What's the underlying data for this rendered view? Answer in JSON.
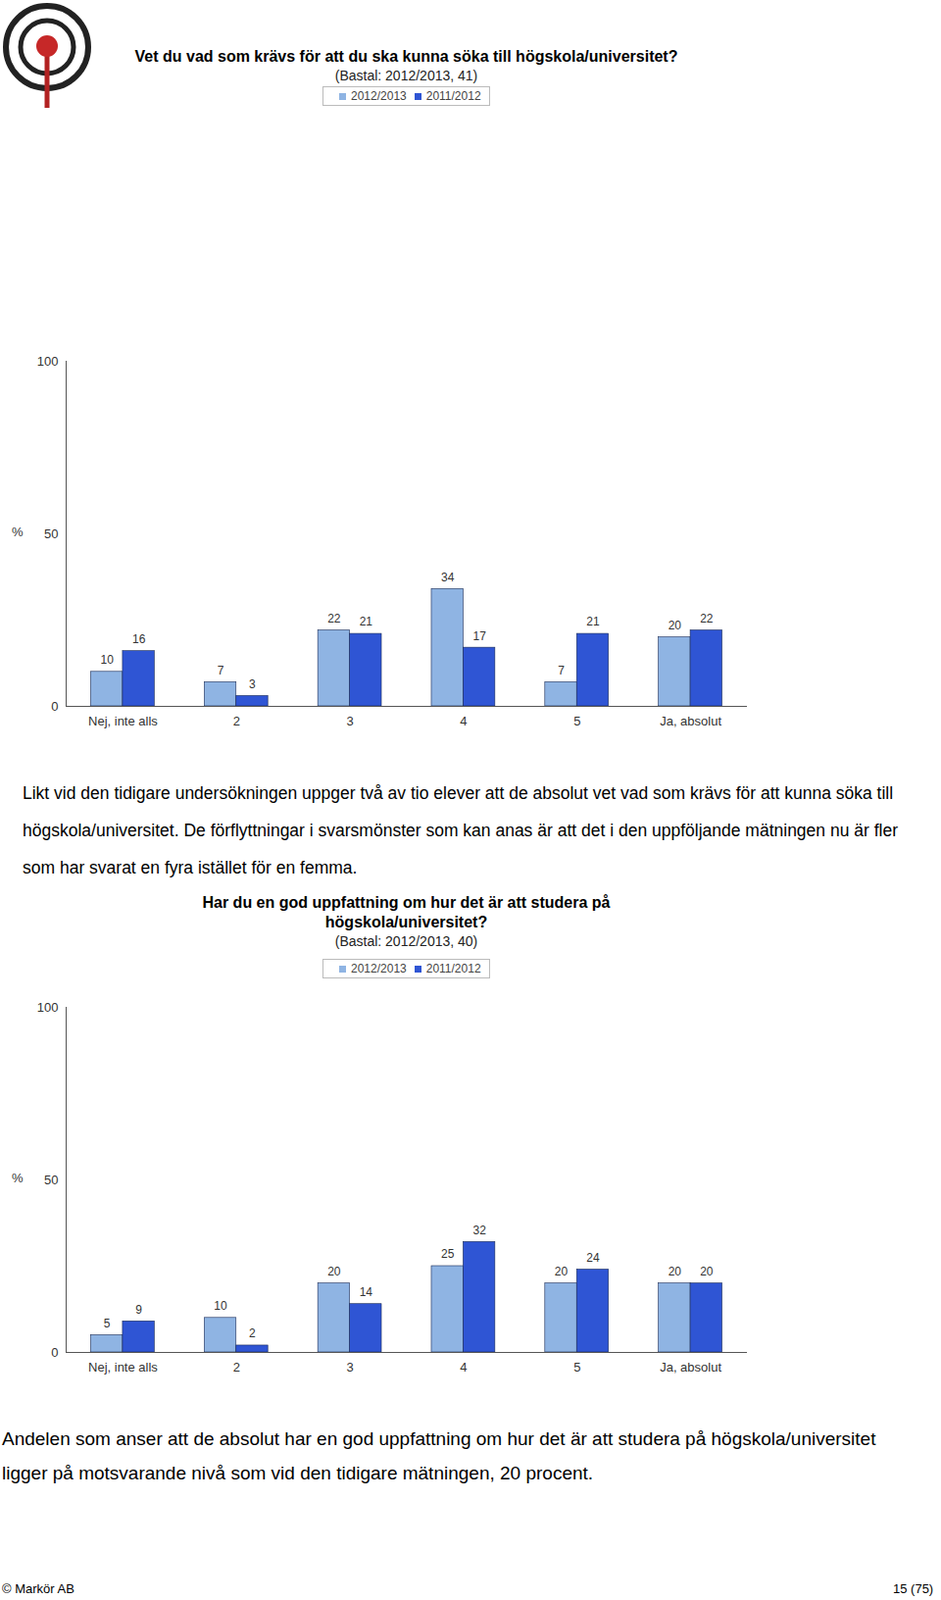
{
  "chart_data": [
    {
      "type": "bar",
      "title": "Vet du vad som krävs för att du ska kunna söka till högskola/universitet?",
      "subtitle": "(Bastal: 2012/2013, 41)",
      "y_label": "%",
      "categories": [
        "Nej, inte alls",
        "2",
        "3",
        "4",
        "5",
        "Ja, absolut"
      ],
      "series": [
        {
          "name": "2012/2013",
          "color": "#8fb4e3",
          "values": [
            10,
            7,
            22,
            34,
            7,
            20
          ]
        },
        {
          "name": "2011/2012",
          "color": "#2f55d4",
          "values": [
            16,
            3,
            21,
            17,
            21,
            22
          ]
        }
      ],
      "ylim": [
        0,
        100
      ],
      "yticks": [
        0,
        50,
        100
      ],
      "grid": false,
      "legend": "top",
      "data_labels": true,
      "caption": "Likt vid den tidigare undersökningen uppger två av tio elever att de absolut vet vad som krävs för att kunna söka till högskola/universitet. De förflyttningar i svarsmönster som kan anas är att det i den uppföljande mätningen nu är fler som har svarat en fyra istället för en femma."
    },
    {
      "type": "bar",
      "title": "Har du en god uppfattning om hur det är att studera på högskola/universitet?",
      "subtitle": "(Bastal: 2012/2013, 40)",
      "y_label": "%",
      "categories": [
        "Nej, inte alls",
        "2",
        "3",
        "4",
        "5",
        "Ja, absolut"
      ],
      "series": [
        {
          "name": "2012/2013",
          "color": "#8fb4e3",
          "values": [
            5,
            10,
            20,
            25,
            20,
            20
          ]
        },
        {
          "name": "2011/2012",
          "color": "#2f55d4",
          "values": [
            9,
            2,
            14,
            32,
            24,
            20
          ]
        }
      ],
      "ylim": [
        0,
        100
      ],
      "yticks": [
        0,
        50,
        100
      ],
      "grid": false,
      "legend": "top",
      "data_labels": true,
      "caption": "Andelen som anser att de absolut har en god uppfattning om hur det är att studera på högskola/universitet ligger på motsvarande nivå som vid den tidigare mätningen, 20 procent."
    }
  ],
  "footer": {
    "left": "© Markör AB",
    "right": "15 (75)"
  }
}
